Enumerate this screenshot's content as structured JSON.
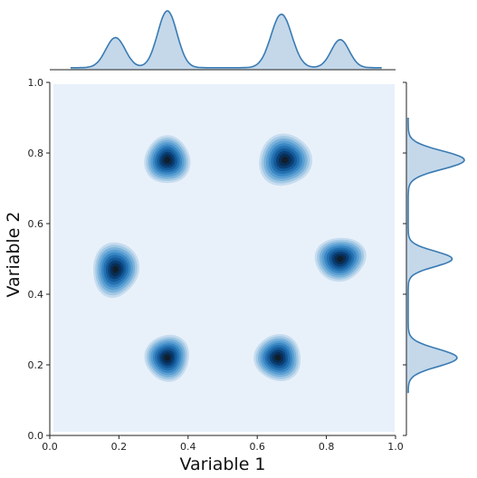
{
  "chart_data": {
    "type": "kde_joint",
    "xlabel": "Variable 1",
    "ylabel": "Variable 2",
    "xlim": [
      0.0,
      1.0
    ],
    "ylim": [
      0.0,
      1.0
    ],
    "xticks": [
      "0.0",
      "0.2",
      "0.4",
      "0.6",
      "0.8",
      "1.0"
    ],
    "yticks": [
      "0.0",
      "0.2",
      "0.4",
      "0.6",
      "0.8",
      "1.0"
    ],
    "grid": false,
    "clusters": [
      {
        "x": 0.34,
        "y": 0.78,
        "sx": 0.037,
        "sy": 0.04
      },
      {
        "x": 0.68,
        "y": 0.78,
        "sx": 0.043,
        "sy": 0.043
      },
      {
        "x": 0.19,
        "y": 0.47,
        "sx": 0.038,
        "sy": 0.045
      },
      {
        "x": 0.84,
        "y": 0.5,
        "sx": 0.043,
        "sy": 0.035
      },
      {
        "x": 0.34,
        "y": 0.22,
        "sx": 0.038,
        "sy": 0.037
      },
      {
        "x": 0.66,
        "y": 0.22,
        "sx": 0.04,
        "sy": 0.037
      }
    ],
    "marginal_x_peaks": [
      0.19,
      0.34,
      0.67,
      0.84
    ],
    "marginal_y_peaks": [
      0.22,
      0.5,
      0.78
    ],
    "colors": {
      "fill": "#e8f1fa",
      "marginal_fill": "#c4d8ea",
      "line": "#3a7bb2",
      "levels": [
        "#c7dcef",
        "#a3c9e4",
        "#7cb2db",
        "#5a9fd2",
        "#3b88c4",
        "#2470b0",
        "#145a99",
        "#0b3f75",
        "#082e55",
        "#121e2a"
      ]
    }
  }
}
